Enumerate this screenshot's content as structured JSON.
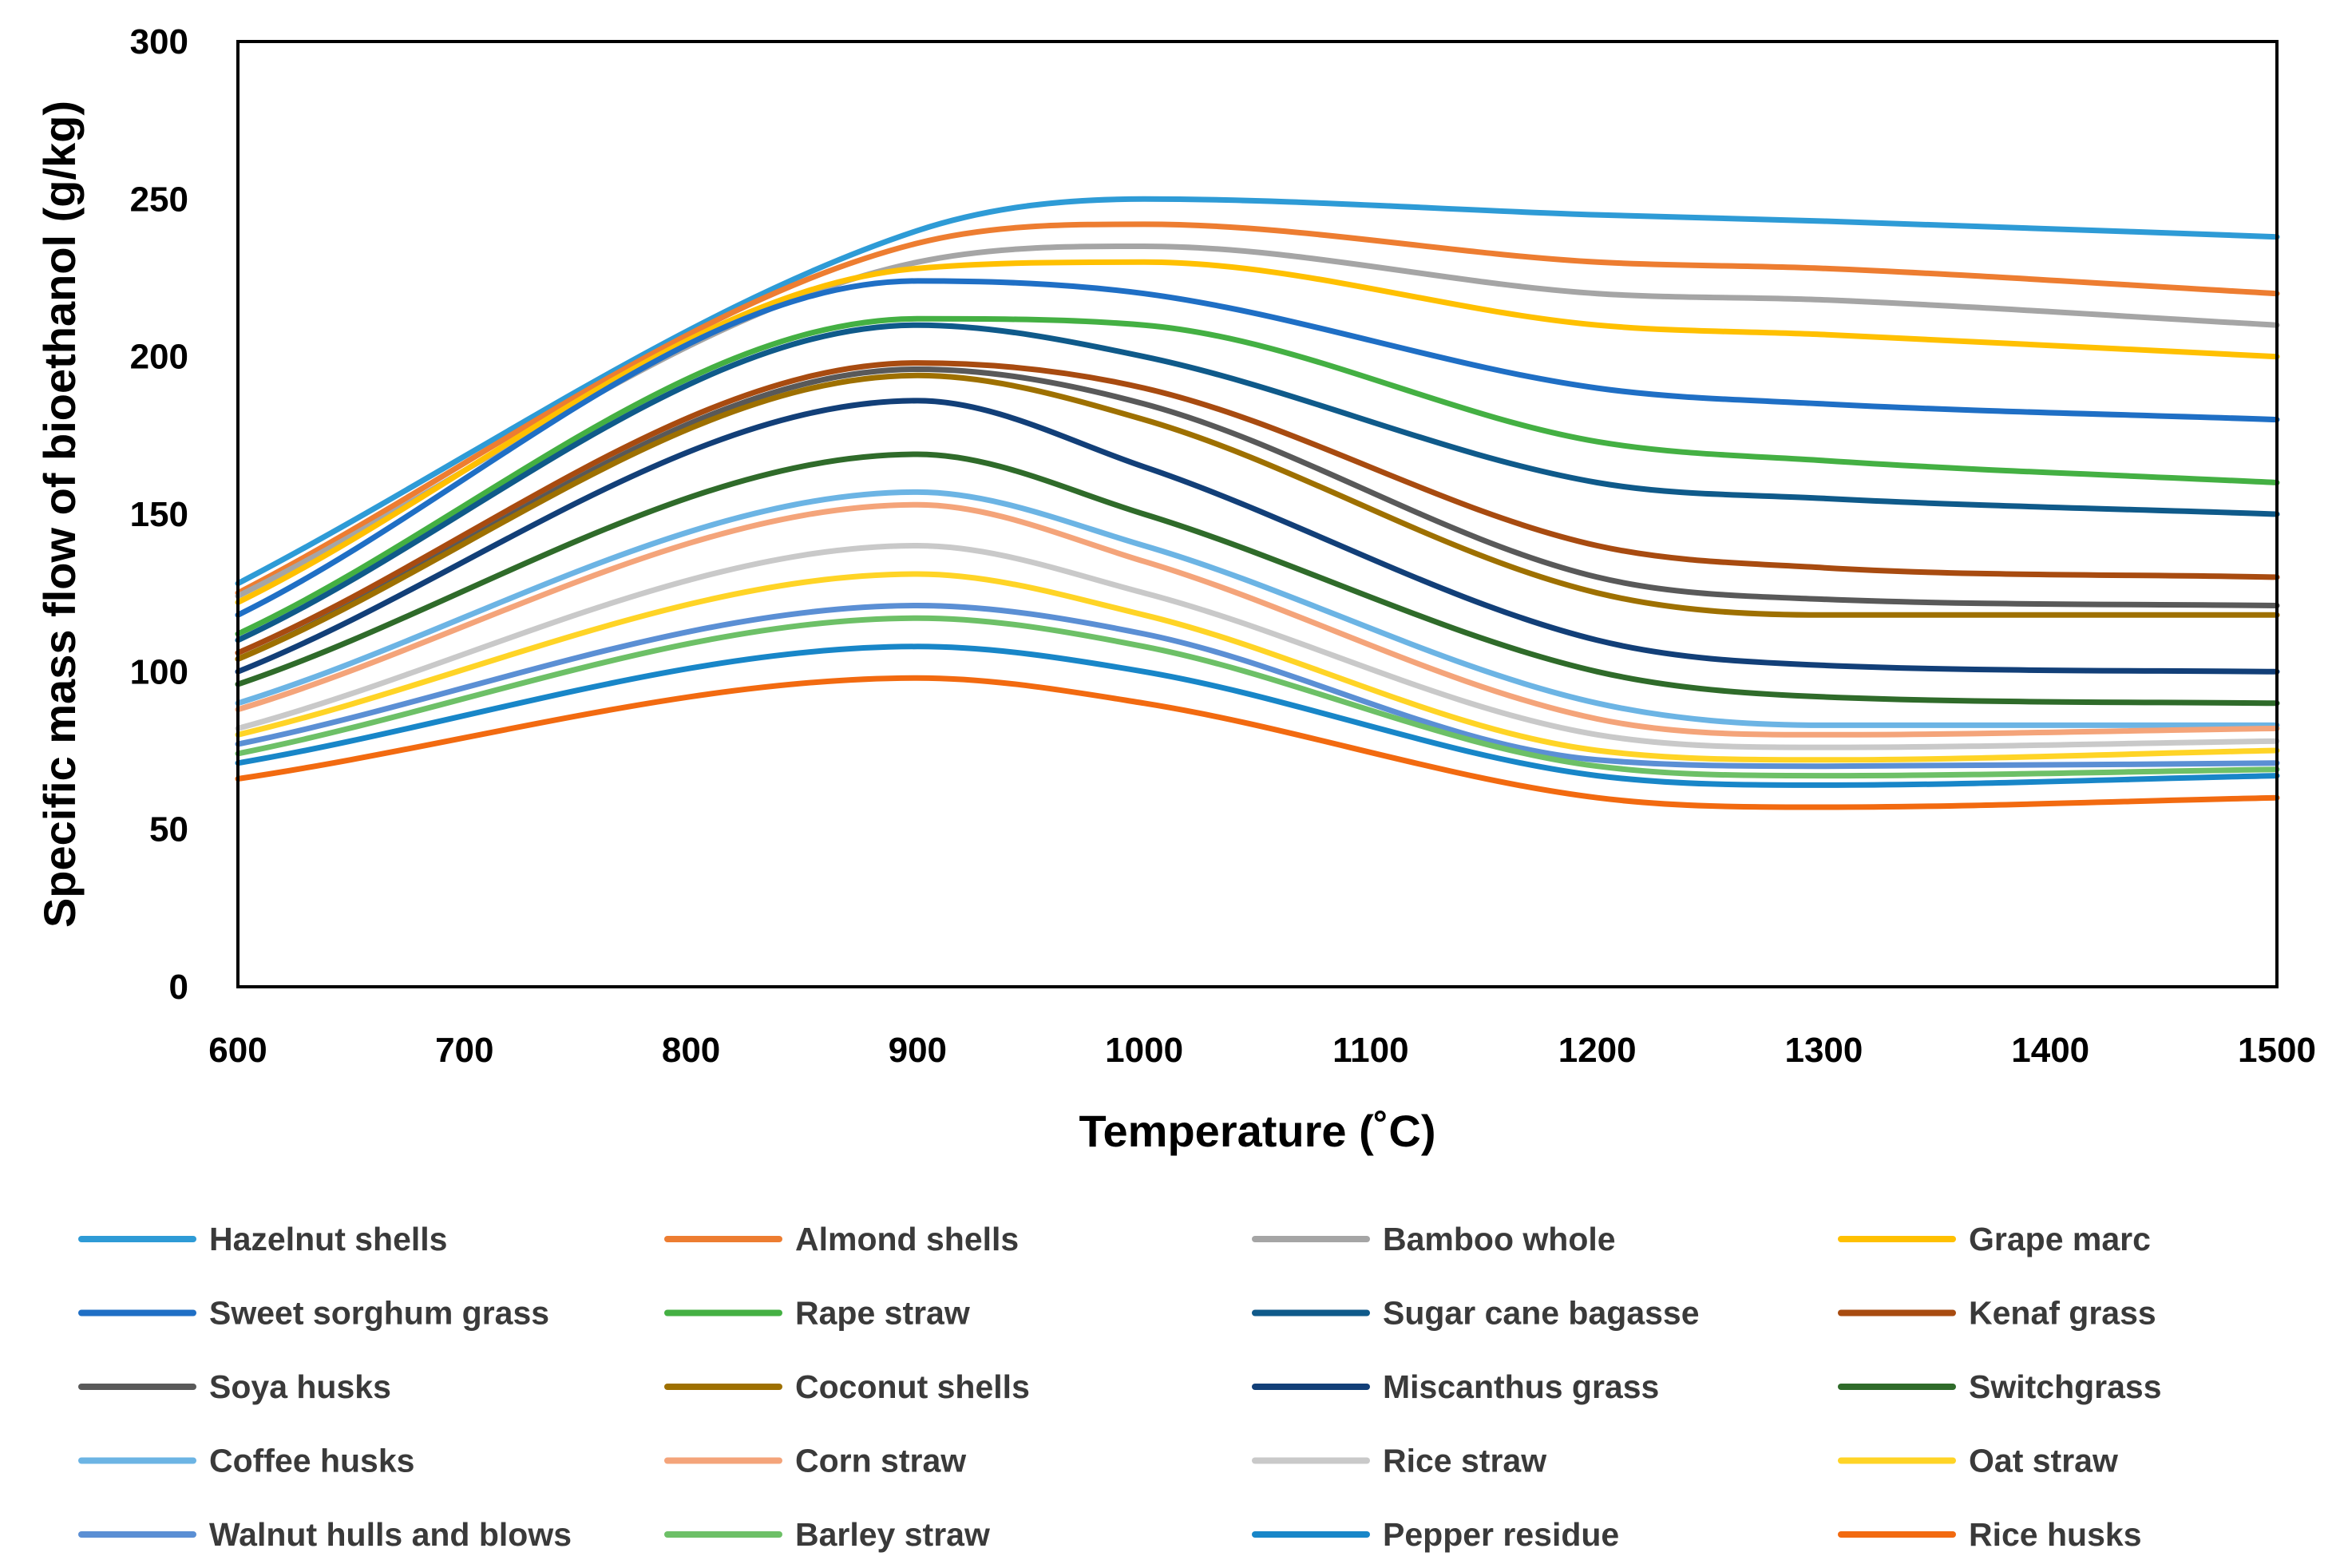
{
  "chart_data": {
    "type": "line",
    "title": "",
    "xlabel": "Temperature (˚C)",
    "ylabel": "Specific mass flow of bioethanol (g/kg)",
    "xlim": [
      600,
      1500
    ],
    "ylim": [
      0,
      300
    ],
    "xticks": [
      600,
      700,
      800,
      900,
      1000,
      1100,
      1200,
      1300,
      1400,
      1500
    ],
    "yticks": [
      0,
      50,
      100,
      150,
      200,
      250,
      300
    ],
    "grid": false,
    "legend_position": "bottom",
    "legend_columns": 4,
    "x": [
      600,
      900,
      1000,
      1200,
      1300,
      1500
    ],
    "series": [
      {
        "name": "Hazelnut shells",
        "color": "#2E9BD6",
        "values": [
          128,
          240,
          250,
          245,
          243,
          238
        ]
      },
      {
        "name": "Almond shells",
        "color": "#ED7D31",
        "values": [
          125,
          236,
          242,
          230,
          228,
          220
        ]
      },
      {
        "name": "Bamboo whole",
        "color": "#A5A5A5",
        "values": [
          124,
          230,
          235,
          220,
          218,
          210
        ]
      },
      {
        "name": "Grape marc",
        "color": "#FFC000",
        "values": [
          122,
          228,
          230,
          210,
          207,
          200
        ]
      },
      {
        "name": "Sweet sorghum grass",
        "color": "#1F6FC5",
        "values": [
          118,
          224,
          220,
          190,
          185,
          180
        ]
      },
      {
        "name": "Rape straw",
        "color": "#44B043",
        "values": [
          112,
          212,
          210,
          173,
          167,
          160
        ]
      },
      {
        "name": "Sugar cane bagasse",
        "color": "#0F5A8A",
        "values": [
          110,
          210,
          200,
          160,
          155,
          150
        ]
      },
      {
        "name": "Kenaf grass",
        "color": "#A84B10",
        "values": [
          106,
          198,
          190,
          140,
          133,
          130
        ]
      },
      {
        "name": "Soya husks",
        "color": "#595959",
        "values": [
          104,
          196,
          185,
          130,
          123,
          121
        ]
      },
      {
        "name": "Coconut shells",
        "color": "#9E7000",
        "values": [
          104,
          194,
          180,
          125,
          118,
          118
        ]
      },
      {
        "name": "Miscanthus grass",
        "color": "#123F78",
        "values": [
          100,
          186,
          165,
          110,
          102,
          100
        ]
      },
      {
        "name": "Switchgrass",
        "color": "#2F6B2A",
        "values": [
          96,
          169,
          150,
          100,
          92,
          90
        ]
      },
      {
        "name": "Coffee husks",
        "color": "#6CB4E4",
        "values": [
          90,
          157,
          140,
          90,
          83,
          83
        ]
      },
      {
        "name": "Corn straw",
        "color": "#F4A47A",
        "values": [
          88,
          153,
          135,
          85,
          80,
          82
        ]
      },
      {
        "name": "Rice straw",
        "color": "#C9C9C9",
        "values": [
          82,
          140,
          125,
          80,
          76,
          78
        ]
      },
      {
        "name": "Oat straw",
        "color": "#FFD426",
        "values": [
          80,
          131,
          118,
          75,
          72,
          75
        ]
      },
      {
        "name": "Walnut hulls and blows",
        "color": "#5B8FD4",
        "values": [
          77,
          121,
          112,
          72,
          70,
          71
        ]
      },
      {
        "name": "Barley straw",
        "color": "#6DC067",
        "values": [
          74,
          117,
          108,
          70,
          67,
          69
        ]
      },
      {
        "name": "Pepper residue",
        "color": "#1886C8",
        "values": [
          71,
          108,
          100,
          67,
          64,
          67
        ]
      },
      {
        "name": "Rice husks",
        "color": "#F26A10",
        "values": [
          66,
          98,
          90,
          60,
          57,
          60
        ]
      }
    ]
  }
}
